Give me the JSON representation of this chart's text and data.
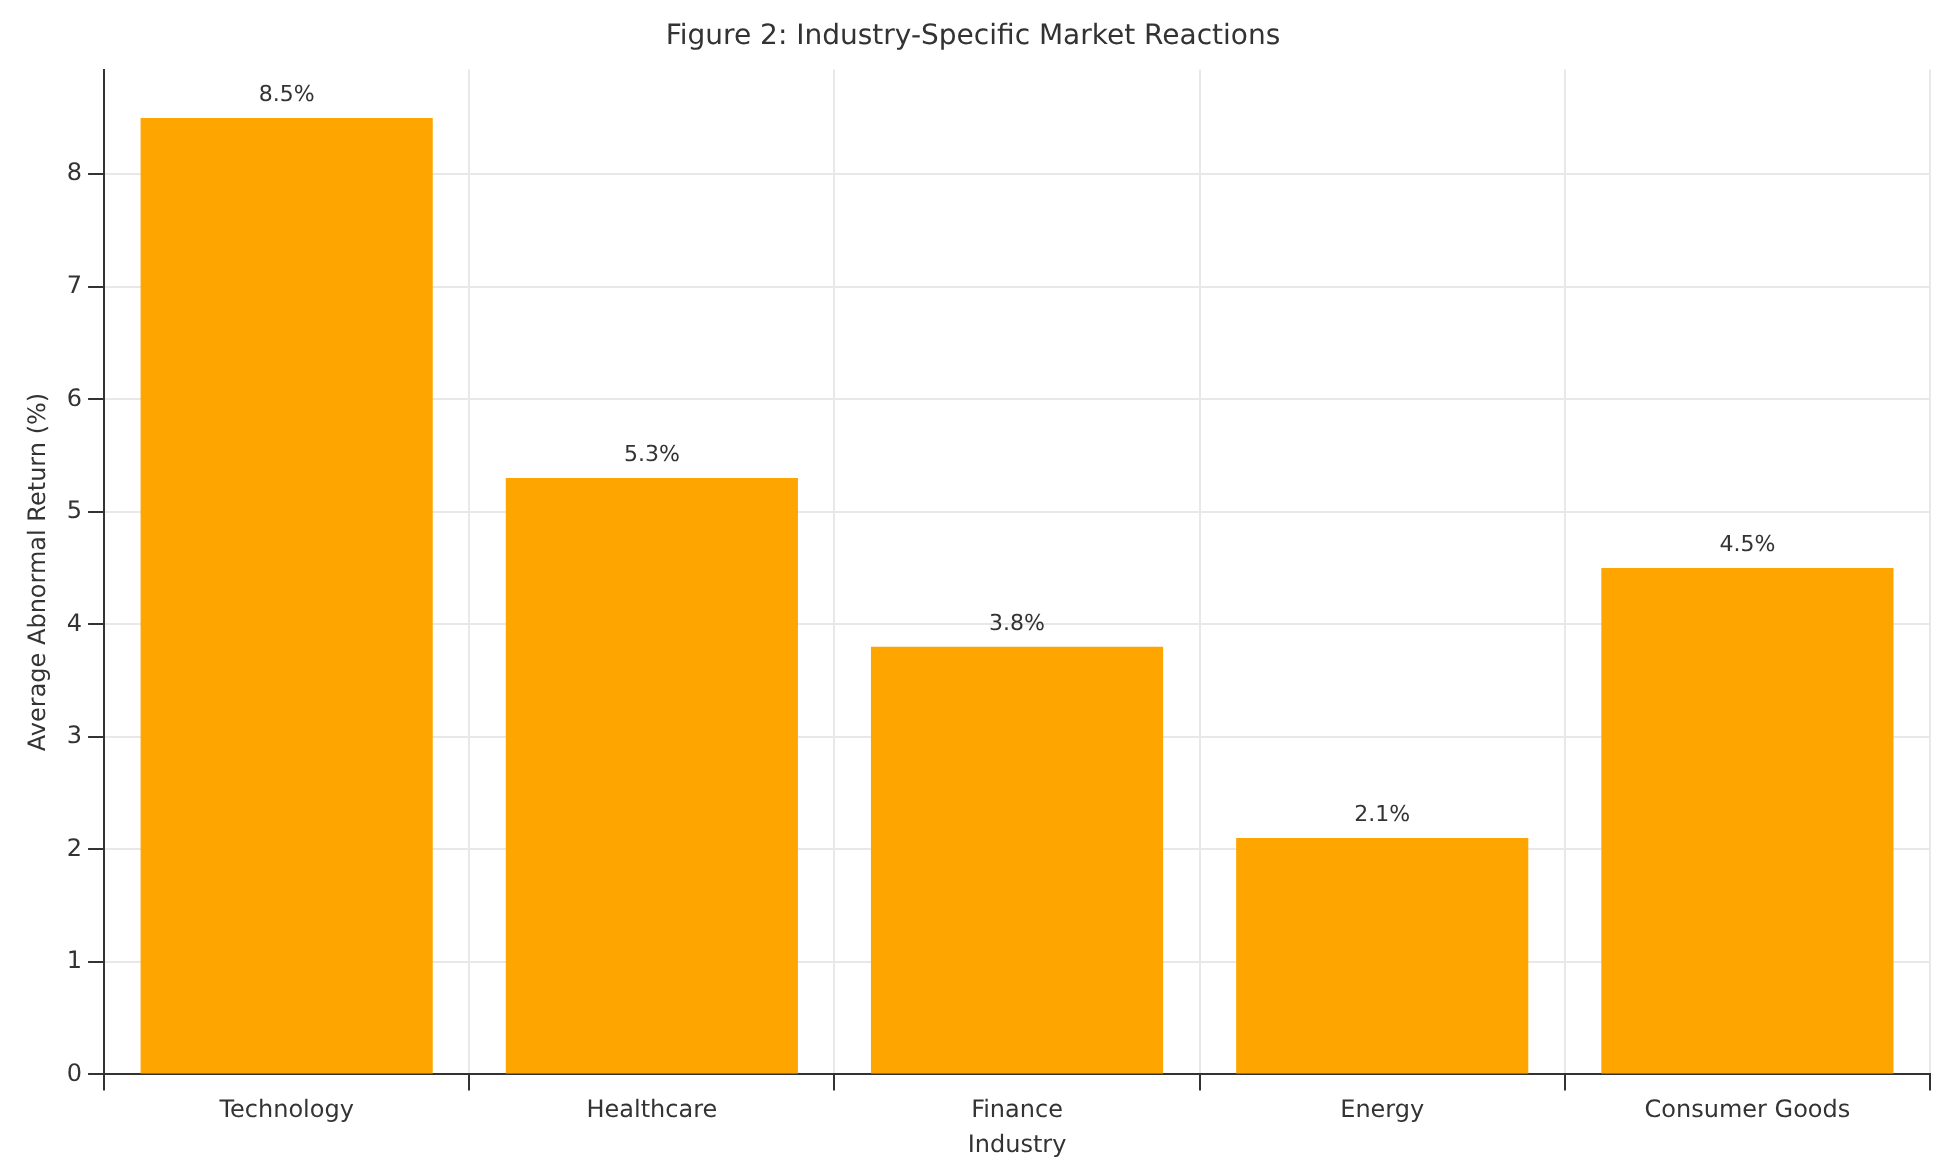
{
  "chart_data": {
    "type": "bar",
    "title": "Figure 2: Industry-Specific Market Reactions",
    "xlabel": "Industry",
    "ylabel": "Average Abnormal Return (%)",
    "categories": [
      "Technology",
      "Healthcare",
      "Finance",
      "Energy",
      "Consumer Goods"
    ],
    "values": [
      8.5,
      5.3,
      3.8,
      2.1,
      4.5
    ],
    "value_labels": [
      "8.5%",
      "5.3%",
      "3.8%",
      "2.1%",
      "4.5%"
    ],
    "color": "#ffa500",
    "ylim": [
      0,
      8.93
    ],
    "yticks": [
      0,
      1,
      2,
      3,
      4,
      5,
      6,
      7,
      8
    ],
    "grid": true,
    "legend": false
  }
}
